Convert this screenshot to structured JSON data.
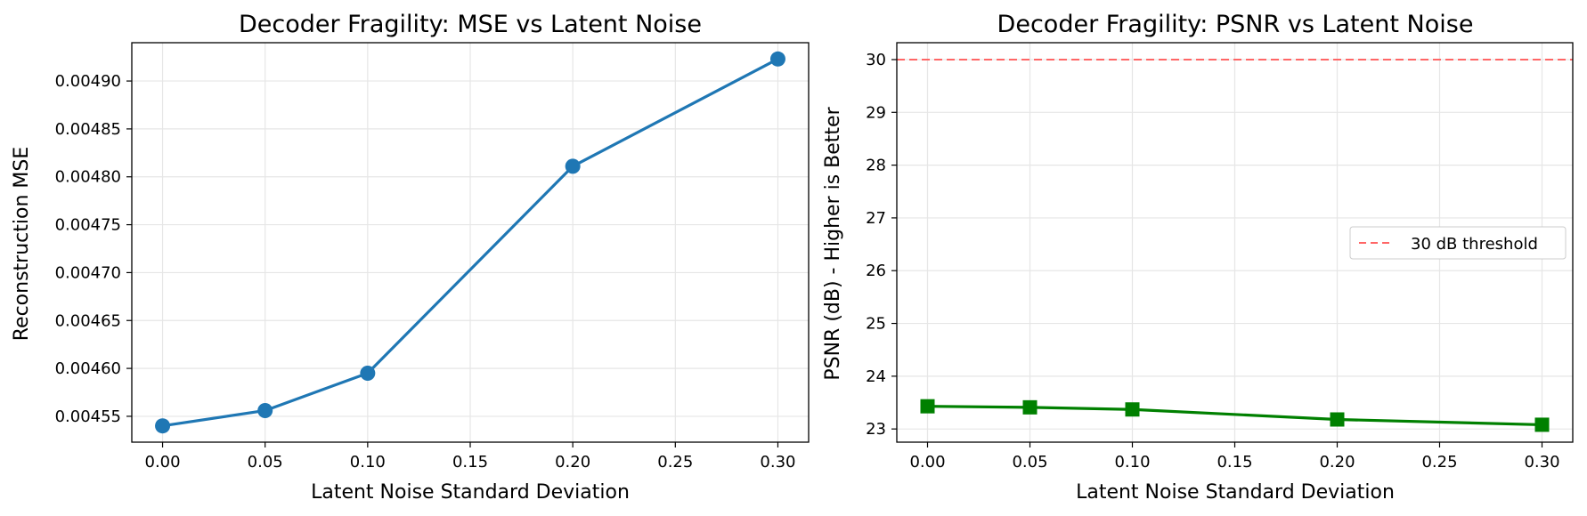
{
  "colors": {
    "mse_line": "#1f77b4",
    "psnr_line": "#008000",
    "threshold": "#ff6666",
    "grid": "#e6e6e6",
    "axes": "#000000"
  },
  "chart_data": [
    {
      "type": "line",
      "title": "Decoder Fragility: MSE vs Latent Noise",
      "xlabel": "Latent Noise Standard Deviation",
      "ylabel": "Reconstruction MSE",
      "x": [
        0.0,
        0.05,
        0.1,
        0.2,
        0.3
      ],
      "series": [
        {
          "values": [
            0.00454,
            0.004556,
            0.004595,
            0.004811,
            0.004923
          ],
          "marker": "circle",
          "color": "#1f77b4"
        }
      ],
      "xlim": [
        -0.015,
        0.315
      ],
      "ylim": [
        0.004523,
        0.00494
      ],
      "xticks": [
        "0.00",
        "0.05",
        "0.10",
        "0.15",
        "0.20",
        "0.25",
        "0.30"
      ],
      "xtick_values": [
        0.0,
        0.05,
        0.1,
        0.15,
        0.2,
        0.25,
        0.3
      ],
      "yticks": [
        "0.00455",
        "0.00460",
        "0.00465",
        "0.00470",
        "0.00475",
        "0.00480",
        "0.00485",
        "0.00490"
      ],
      "ytick_values": [
        0.00455,
        0.0046,
        0.00465,
        0.0047,
        0.00475,
        0.0048,
        0.00485,
        0.0049
      ],
      "grid": true
    },
    {
      "type": "line",
      "title": "Decoder Fragility: PSNR vs Latent Noise",
      "xlabel": "Latent Noise Standard Deviation",
      "ylabel": "PSNR (dB) - Higher is Better",
      "x": [
        0.0,
        0.05,
        0.1,
        0.2,
        0.3
      ],
      "series": [
        {
          "values": [
            23.43,
            23.41,
            23.37,
            23.18,
            23.08
          ],
          "marker": "square",
          "color": "#008000"
        }
      ],
      "reference_line": {
        "y": 30,
        "label": "30 dB threshold",
        "style": "dashed",
        "color": "#ff6666"
      },
      "legend": {
        "placement": "center-right",
        "entries": [
          "30 dB threshold"
        ]
      },
      "xlim": [
        -0.015,
        0.315
      ],
      "ylim": [
        22.75,
        30.32
      ],
      "xticks": [
        "0.00",
        "0.05",
        "0.10",
        "0.15",
        "0.20",
        "0.25",
        "0.30"
      ],
      "xtick_values": [
        0.0,
        0.05,
        0.1,
        0.15,
        0.2,
        0.25,
        0.3
      ],
      "yticks": [
        "23",
        "24",
        "25",
        "26",
        "27",
        "28",
        "29",
        "30"
      ],
      "ytick_values": [
        23,
        24,
        25,
        26,
        27,
        28,
        29,
        30
      ],
      "grid": true
    }
  ]
}
